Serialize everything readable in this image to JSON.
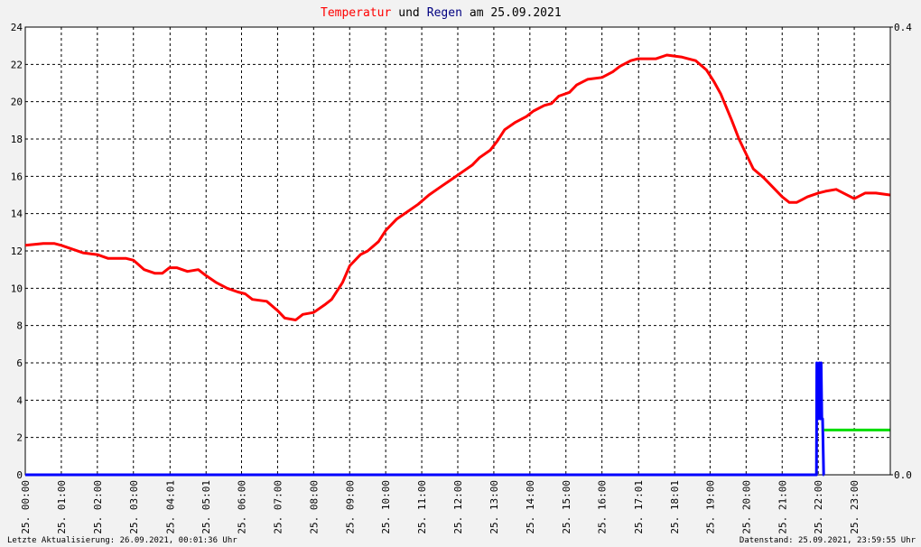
{
  "chart_data": {
    "type": "line",
    "title_middle": "und",
    "title_end": "am 25.09.2021",
    "xlim": [
      0,
      24
    ],
    "xticks": [
      {
        "value": 0,
        "label": "25. 00:00"
      },
      {
        "value": 1,
        "label": "25. 01:00"
      },
      {
        "value": 2,
        "label": "25. 02:00"
      },
      {
        "value": 3,
        "label": "25. 03:00"
      },
      {
        "value": 4.0167,
        "label": "25. 04:01"
      },
      {
        "value": 5.0167,
        "label": "25. 05:01"
      },
      {
        "value": 6,
        "label": "25. 06:00"
      },
      {
        "value": 7,
        "label": "25. 07:00"
      },
      {
        "value": 8,
        "label": "25. 08:00"
      },
      {
        "value": 9,
        "label": "25. 09:00"
      },
      {
        "value": 10,
        "label": "25. 10:00"
      },
      {
        "value": 11,
        "label": "25. 11:00"
      },
      {
        "value": 12,
        "label": "25. 12:00"
      },
      {
        "value": 13,
        "label": "25. 13:00"
      },
      {
        "value": 14,
        "label": "25. 14:00"
      },
      {
        "value": 15,
        "label": "25. 15:00"
      },
      {
        "value": 16,
        "label": "25. 16:00"
      },
      {
        "value": 17.0167,
        "label": "25. 17:01"
      },
      {
        "value": 18.0167,
        "label": "25. 18:01"
      },
      {
        "value": 19,
        "label": "25. 19:00"
      },
      {
        "value": 20,
        "label": "25. 20:00"
      },
      {
        "value": 21,
        "label": "25. 21:00"
      },
      {
        "value": 22,
        "label": "25. 22:00"
      },
      {
        "value": 23,
        "label": "25. 23:00"
      }
    ],
    "ylim": [
      0,
      24
    ],
    "yticks": [
      0,
      2,
      4,
      6,
      8,
      10,
      12,
      14,
      16,
      18,
      20,
      22,
      24
    ],
    "y2lim": [
      0,
      0.4
    ],
    "y2ticks": [
      {
        "value": 0,
        "label": "0.0"
      },
      0.4
    ],
    "grid": true,
    "series": [
      {
        "name": "Temperatur",
        "color": "#ff0000",
        "x": [
          0,
          0.5,
          0.8,
          1,
          1.3,
          1.6,
          2,
          2.3,
          2.8,
          3,
          3.3,
          3.6,
          3.8,
          4,
          4.2,
          4.5,
          4.8,
          5,
          5.3,
          5.6,
          5.9,
          6.1,
          6.3,
          6.7,
          7,
          7.2,
          7.5,
          7.7,
          8,
          8.3,
          8.5,
          8.8,
          9,
          9.3,
          9.5,
          9.8,
          10,
          10.3,
          10.6,
          10.9,
          11.2,
          11.5,
          11.8,
          12.1,
          12.4,
          12.6,
          12.9,
          13.1,
          13.3,
          13.6,
          13.9,
          14.1,
          14.4,
          14.6,
          14.8,
          15.1,
          15.3,
          15.6,
          16,
          16.3,
          16.5,
          16.8,
          17,
          17.5,
          17.8,
          18.2,
          18.6,
          18.9,
          19.1,
          19.3,
          19.6,
          19.8,
          20,
          20.2,
          20.5,
          20.8,
          21,
          21.2,
          21.4,
          21.7,
          22,
          22.2,
          22.5,
          22.7,
          23,
          23.3,
          23.6,
          23.99
        ],
        "values": [
          12.3,
          12.4,
          12.4,
          12.3,
          12.1,
          11.9,
          11.8,
          11.6,
          11.6,
          11.5,
          11,
          10.8,
          10.8,
          11.1,
          11.1,
          10.9,
          11,
          10.7,
          10.3,
          10,
          9.8,
          9.7,
          9.4,
          9.3,
          8.8,
          8.4,
          8.3,
          8.6,
          8.7,
          9.1,
          9.4,
          10.3,
          11.2,
          11.8,
          12,
          12.5,
          13.1,
          13.7,
          14.1,
          14.5,
          15,
          15.4,
          15.8,
          16.2,
          16.6,
          17,
          17.4,
          17.9,
          18.5,
          18.9,
          19.2,
          19.5,
          19.8,
          19.9,
          20.3,
          20.5,
          20.9,
          21.2,
          21.3,
          21.6,
          21.9,
          22.2,
          22.3,
          22.3,
          22.5,
          22.4,
          22.2,
          21.7,
          21.1,
          20.4,
          19,
          18,
          17.2,
          16.4,
          15.9,
          15.3,
          14.9,
          14.6,
          14.6,
          14.9,
          15.1,
          15.2,
          15.3,
          15.1,
          14.8,
          15.1,
          15.1,
          15
        ]
      },
      {
        "name": "Regen",
        "color": "#0000ff",
        "axis": "y2",
        "x": [
          0,
          21.95,
          21.96,
          22,
          22.03,
          22.06,
          22.08,
          22.1,
          22.12,
          22.15,
          22.16
        ],
        "values": [
          0,
          0,
          0.1,
          0.05,
          0.1,
          0.05,
          0.1,
          0.05,
          0.05,
          0,
          0
        ]
      },
      {
        "color": "#00dd00",
        "axis": "y2",
        "x": [
          22.16,
          23.99
        ],
        "values": [
          0.04,
          0.04
        ]
      }
    ]
  },
  "footer_left": "Letzte Aktualisierung: 26.09.2021, 00:01:36 Uhr",
  "footer_right": "Datenstand: 25.09.2021, 23:59:55 Uhr"
}
